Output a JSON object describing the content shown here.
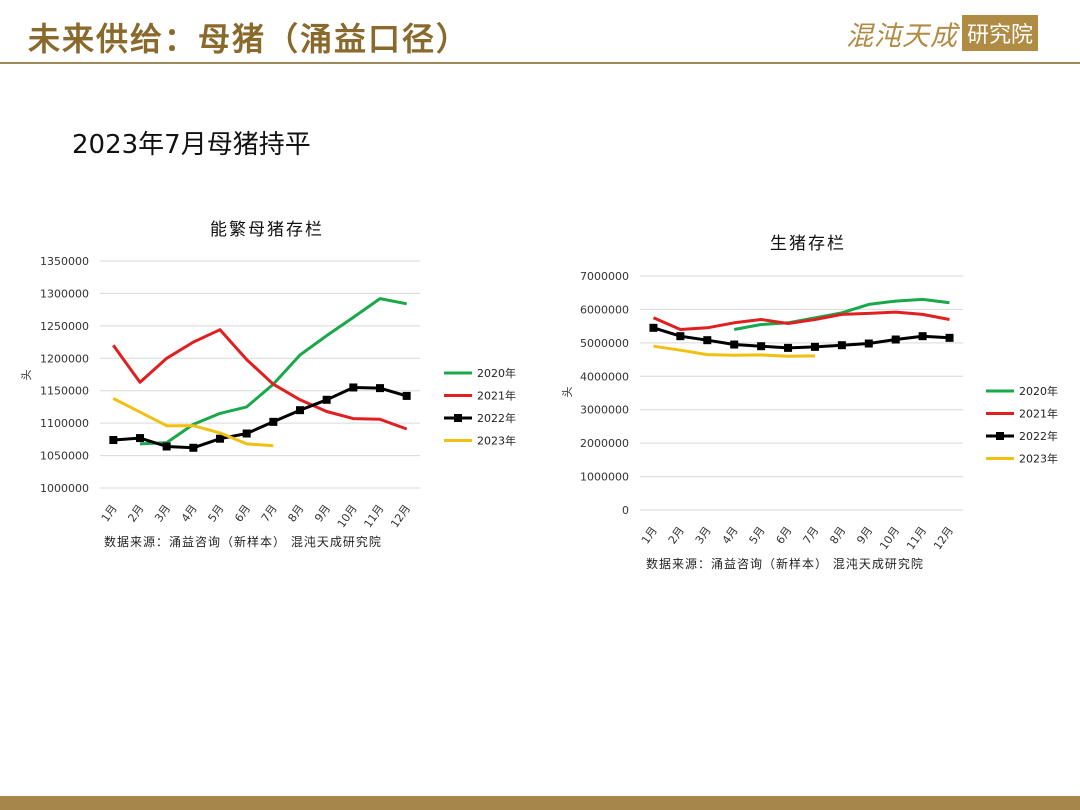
{
  "header": {
    "title": "未来供给：母猪（涌益口径）",
    "logo_text": "混沌天成",
    "logo_box": "研究院"
  },
  "subtitle": "2023年7月母猪持平",
  "chart_data": [
    {
      "type": "line",
      "title": "能繁母猪存栏",
      "ylabel": "头",
      "source": "数据来源：涌益咨询（新样本） 混沌天成研究院",
      "categories": [
        "1月",
        "2月",
        "3月",
        "4月",
        "5月",
        "6月",
        "7月",
        "8月",
        "9月",
        "10月",
        "11月",
        "12月"
      ],
      "y_ticks": [
        "1350000",
        "1300000",
        "1250000",
        "1200000",
        "1150000",
        "1100000",
        "1050000",
        "1000000"
      ],
      "ylim": [
        1000000,
        1350000
      ],
      "grid": true,
      "legend_position": "right",
      "series": [
        {
          "name": "2020年",
          "color": "#1aa84a",
          "marker": "none",
          "values": [
            null,
            1068000,
            1070000,
            1098000,
            1115000,
            1125000,
            1160000,
            1205000,
            1235000,
            1263000,
            1292000,
            1284000
          ]
        },
        {
          "name": "2021年",
          "color": "#e02020",
          "marker": "none",
          "values": [
            1220000,
            1163000,
            1200000,
            1225000,
            1244000,
            1198000,
            1160000,
            1136000,
            1118000,
            1107000,
            1106000,
            1091000
          ]
        },
        {
          "name": "2022年",
          "color": "#000000",
          "marker": "square",
          "values": [
            1074000,
            1077000,
            1064000,
            1062000,
            1076000,
            1084000,
            1102000,
            1120000,
            1136000,
            1155000,
            1154000,
            1142000
          ]
        },
        {
          "name": "2023年",
          "color": "#f2c010",
          "marker": "none",
          "values": [
            1138000,
            1117000,
            1096000,
            1096000,
            1085000,
            1068000,
            1065000,
            null,
            null,
            null,
            null,
            null
          ]
        }
      ]
    },
    {
      "type": "line",
      "title": "生猪存栏",
      "ylabel": "头",
      "source": "数据来源：涌益咨询（新样本） 混沌天成研究院",
      "categories": [
        "1月",
        "2月",
        "3月",
        "4月",
        "5月",
        "6月",
        "7月",
        "8月",
        "9月",
        "10月",
        "11月",
        "12月"
      ],
      "y_ticks": [
        "7000000",
        "6000000",
        "5000000",
        "4000000",
        "3000000",
        "2000000",
        "1000000",
        "0"
      ],
      "ylim": [
        0,
        7000000
      ],
      "grid": true,
      "legend_position": "right",
      "series": [
        {
          "name": "2020年",
          "color": "#1aa84a",
          "marker": "none",
          "values": [
            null,
            null,
            null,
            5400000,
            5550000,
            5600000,
            5750000,
            5900000,
            6150000,
            6250000,
            6300000,
            6200000
          ]
        },
        {
          "name": "2021年",
          "color": "#e02020",
          "marker": "none",
          "values": [
            5750000,
            5400000,
            5450000,
            5600000,
            5700000,
            5580000,
            5700000,
            5850000,
            5880000,
            5920000,
            5850000,
            5700000
          ]
        },
        {
          "name": "2022年",
          "color": "#000000",
          "marker": "square",
          "values": [
            5450000,
            5200000,
            5080000,
            4950000,
            4900000,
            4850000,
            4880000,
            4930000,
            4980000,
            5100000,
            5200000,
            5150000
          ]
        },
        {
          "name": "2023年",
          "color": "#f2c010",
          "marker": "none",
          "values": [
            4900000,
            4780000,
            4650000,
            4630000,
            4640000,
            4600000,
            4610000,
            null,
            null,
            null,
            null,
            null
          ]
        }
      ]
    }
  ]
}
